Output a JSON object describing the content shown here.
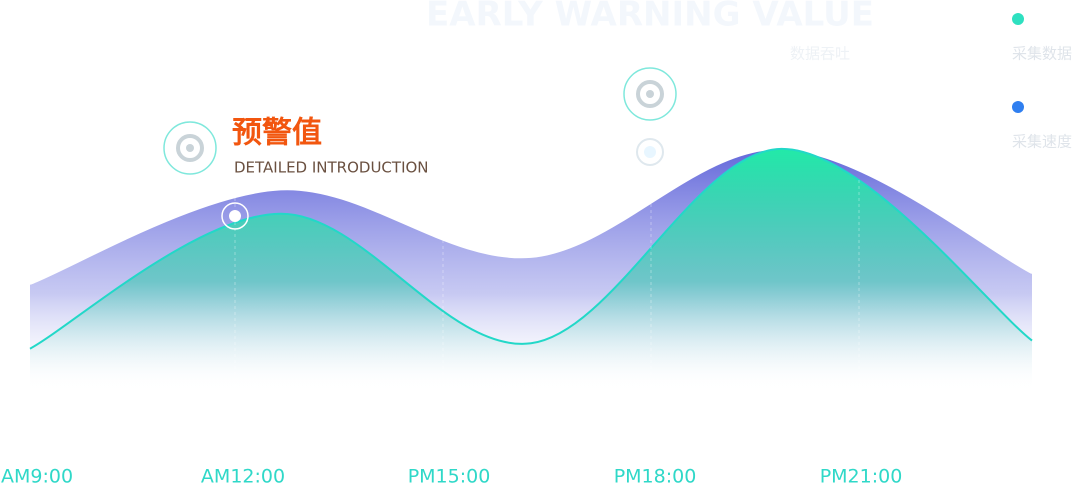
{
  "chart_data": {
    "type": "area",
    "title": "EARLY WARNING VALUE",
    "subtitle": "数据吞吐",
    "annotation": {
      "title": "预警值",
      "text": "DETAILED INTRODUCTION"
    },
    "categories": [
      "AM9:00",
      "AM12:00",
      "PM15:00",
      "PM18:00",
      "PM21:00"
    ],
    "series": [
      {
        "name": "采集数据",
        "color": "#2ee0c0",
        "values": [
          19,
          69,
          21,
          93,
          22
        ]
      },
      {
        "name": "采集速度",
        "color": "#2f7ff0",
        "values": [
          43,
          78,
          53,
          93,
          47
        ]
      }
    ],
    "ylim": [
      0,
      100
    ]
  }
}
